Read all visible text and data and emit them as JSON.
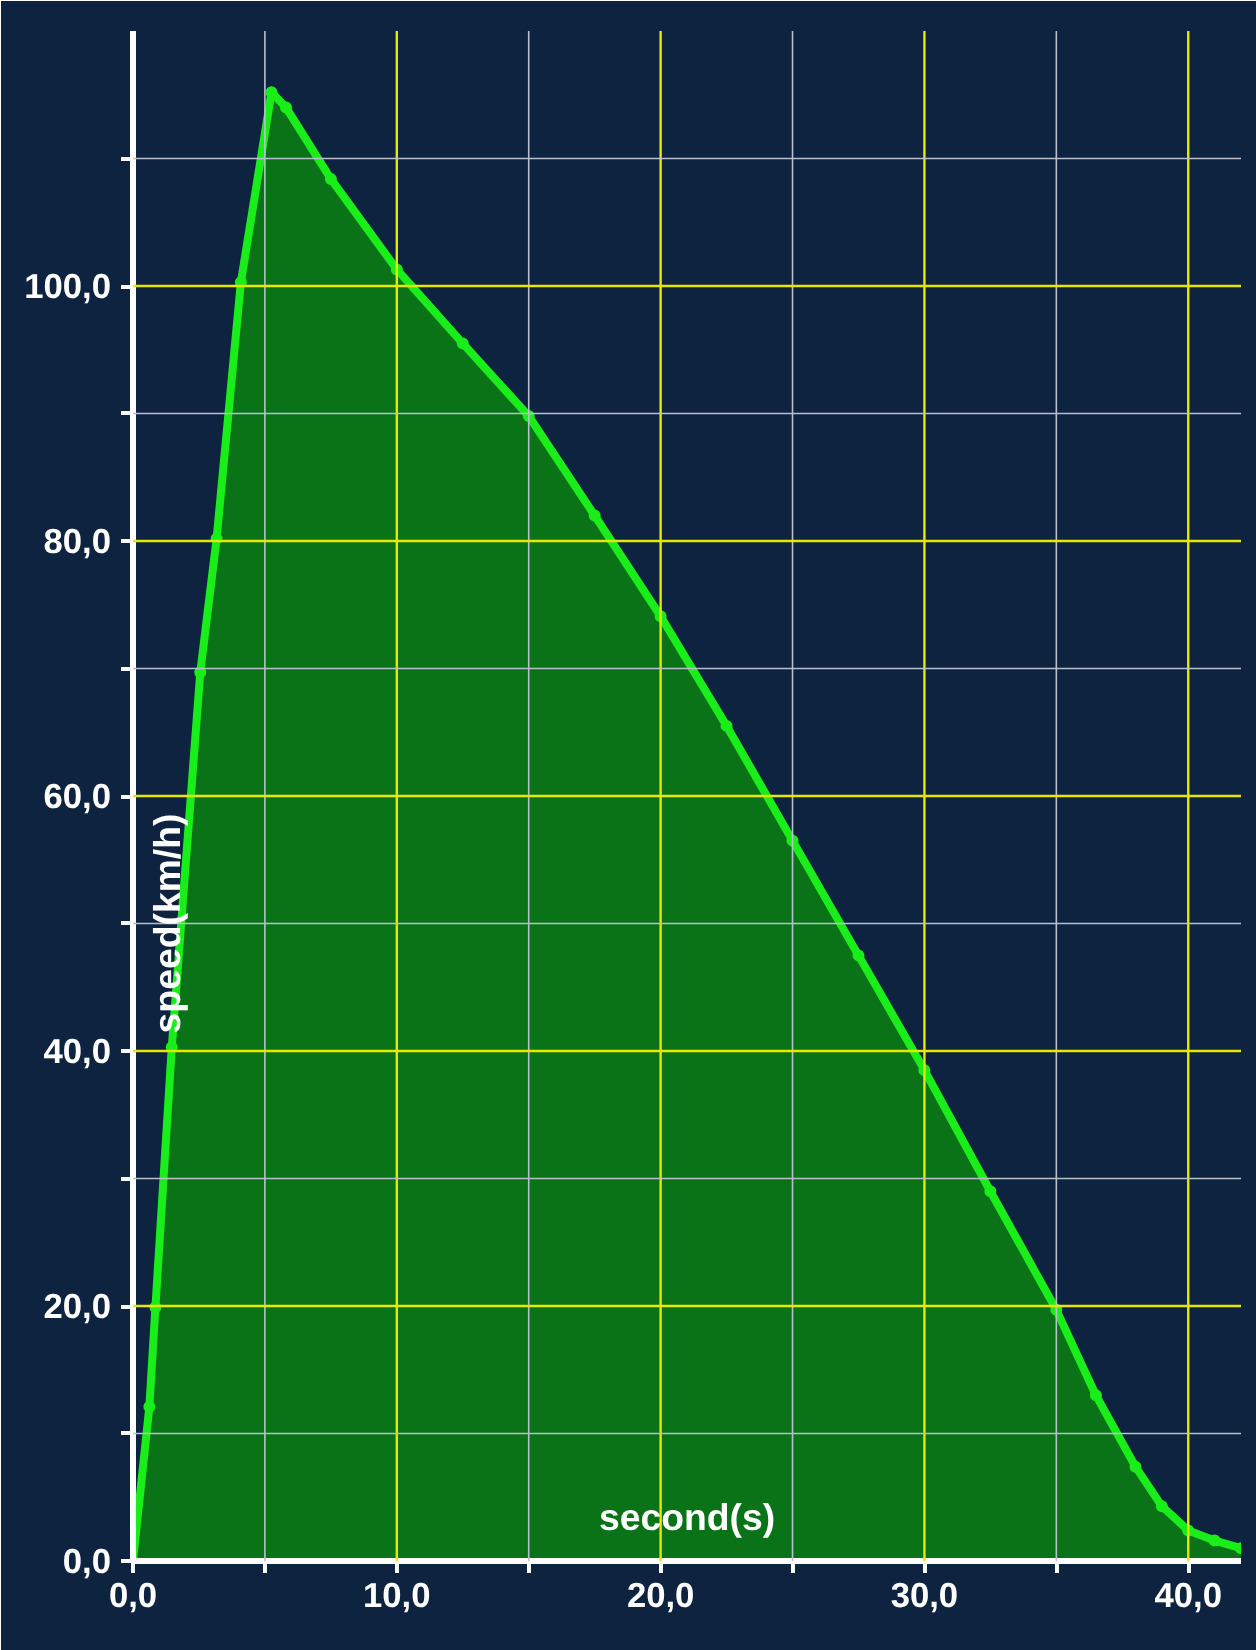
{
  "chart_data": {
    "type": "area",
    "xlabel": "second(s)",
    "ylabel": "speed(km/h)",
    "x": [
      0,
      0.62,
      0.85,
      1.47,
      2.55,
      3.17,
      4.09,
      5.25,
      5.8,
      7.5,
      10,
      12.5,
      15,
      17.5,
      20,
      22.5,
      25,
      27.5,
      30,
      32.5,
      35,
      36.5,
      38,
      39,
      40,
      41,
      42
    ],
    "series": [
      {
        "color": "#1aee1a",
        "values": [
          0,
          12.1,
          19.9,
          40.3,
          69.7,
          80.2,
          100.3,
          115.2,
          114,
          108.4,
          101.3,
          95.5,
          89.8,
          82,
          74.1,
          65.5,
          56.5,
          47.5,
          38.5,
          29,
          19.7,
          13,
          7.4,
          4.3,
          2.4,
          1.6,
          1.0
        ]
      }
    ],
    "xlim": [
      0,
      42
    ],
    "ylim": [
      0,
      120
    ],
    "xticks": [
      {
        "value": 0,
        "label": "0,0"
      },
      {
        "value": 5,
        "label": null
      },
      {
        "value": 10,
        "label": "10,0"
      },
      {
        "value": 15,
        "label": null
      },
      {
        "value": 20,
        "label": "20,0"
      },
      {
        "value": 25,
        "label": null
      },
      {
        "value": 30,
        "label": "30,0"
      },
      {
        "value": 35,
        "label": null
      },
      {
        "value": 40,
        "label": "40,0"
      }
    ],
    "yticks": [
      {
        "value": 0,
        "label": "0,0"
      },
      {
        "value": 10,
        "label": null
      },
      {
        "value": 20,
        "label": "20,0"
      },
      {
        "value": 30,
        "label": null
      },
      {
        "value": 40,
        "label": "40,0"
      },
      {
        "value": 50,
        "label": null
      },
      {
        "value": 60,
        "label": "60,0"
      },
      {
        "value": 70,
        "label": null
      },
      {
        "value": 80,
        "label": "80,0"
      },
      {
        "value": 90,
        "label": null
      },
      {
        "value": 100,
        "label": "100,0"
      },
      {
        "value": 110,
        "label": null
      }
    ],
    "grid": true,
    "marker": "circle",
    "line_style": "solid"
  }
}
